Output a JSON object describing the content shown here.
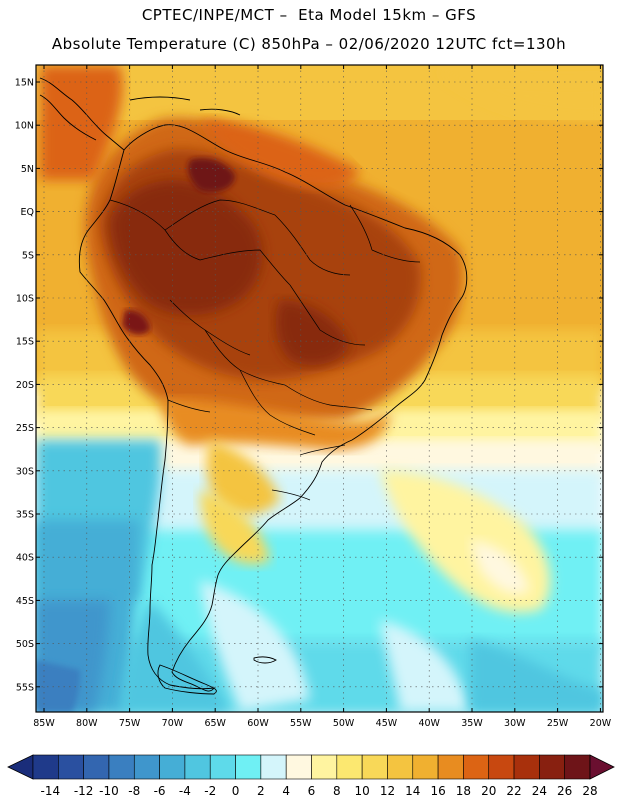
{
  "title_line1": "CPTEC/INPE/MCT –  Eta Model 15km – GFS",
  "title_line2": "Absolute Temperature (C) 850hPa – 02/06/2020 12UTC fct=130h",
  "lat_labels": [
    "15N",
    "10N",
    "5N",
    "EQ",
    "5S",
    "10S",
    "15S",
    "20S",
    "25S",
    "30S",
    "35S",
    "40S",
    "45S",
    "50S",
    "55S"
  ],
  "lon_labels": [
    "85W",
    "80W",
    "75W",
    "70W",
    "65W",
    "60W",
    "55W",
    "50W",
    "45W",
    "40W",
    "35W",
    "30W",
    "25W",
    "20W"
  ],
  "colorbar": {
    "labels": [
      "-14",
      "-12",
      "-10",
      "-8",
      "-6",
      "-4",
      "-2",
      "0",
      "2",
      "4",
      "6",
      "8",
      "10",
      "12",
      "14",
      "16",
      "18",
      "20",
      "22",
      "24",
      "26",
      "28"
    ],
    "colors": [
      "#1f3a8a",
      "#2a50a0",
      "#3366b0",
      "#3a7fc0",
      "#3f96cc",
      "#45aed6",
      "#50c6e0",
      "#5edaea",
      "#6ff0f4",
      "#d4f5fb",
      "#fff8e0",
      "#fff4a0",
      "#fce870",
      "#f8d858",
      "#f4c440",
      "#f0b030",
      "#e88c20",
      "#dc6414",
      "#c84810",
      "#a8300c",
      "#882010",
      "#6e1418"
    ],
    "under_color": "#1a2d7a",
    "over_color": "#6a0f30"
  },
  "palette": {
    "ocean_warm": "#f0b030",
    "land_hot": "#a8420f",
    "land_warm": "#d06818",
    "cool": "#6ff0f4",
    "cold": "#45aed6"
  }
}
